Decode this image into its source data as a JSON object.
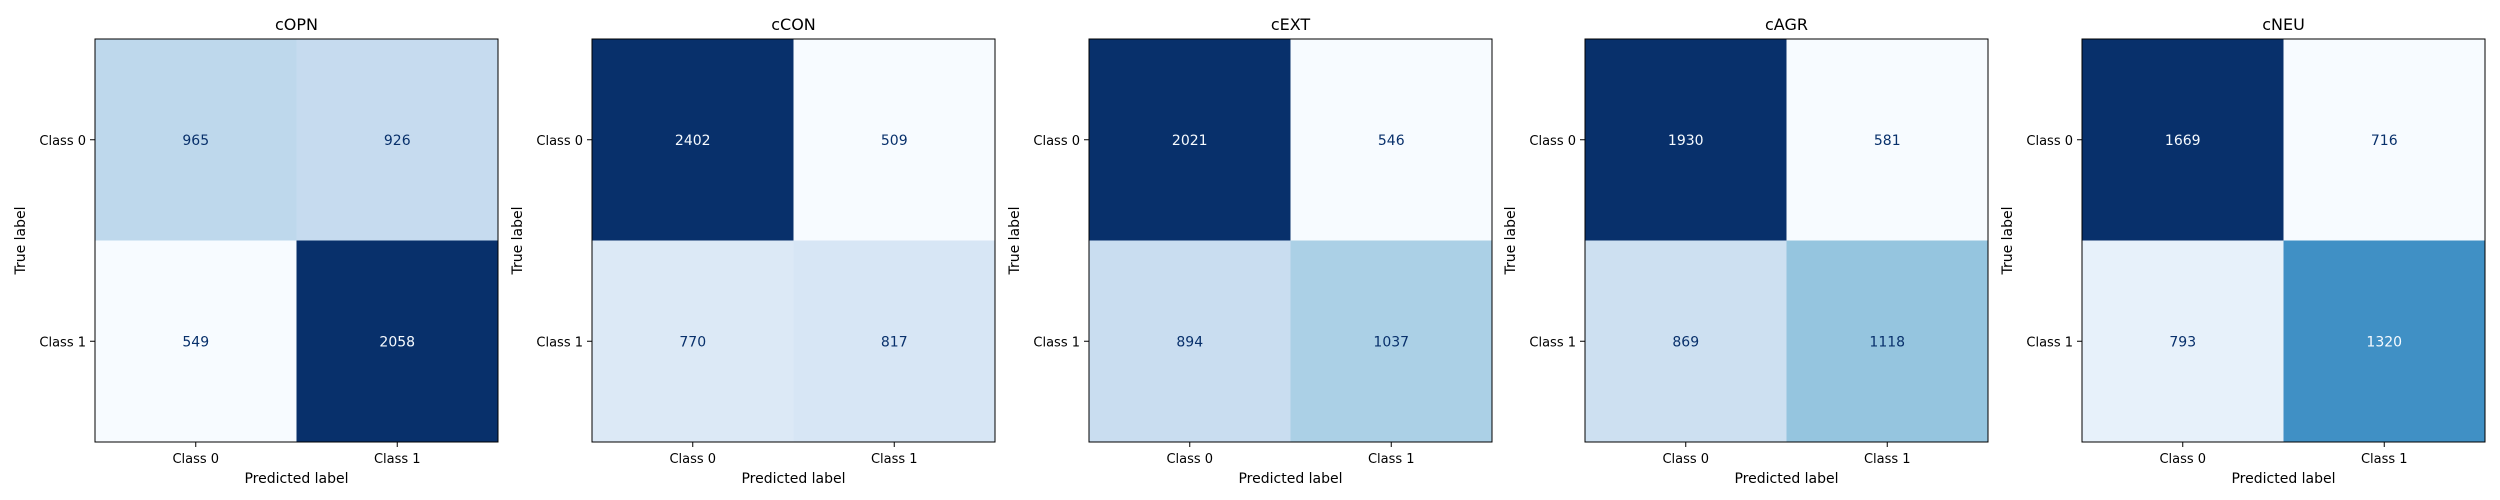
{
  "chart_data": [
    {
      "type": "heatmap",
      "title": "cOPN",
      "xlabel": "Predicted label",
      "ylabel": "True label",
      "x_ticks": [
        "Class 0",
        "Class 1"
      ],
      "y_ticks": [
        "Class 0",
        "Class 1"
      ],
      "matrix": [
        [
          965,
          926
        ],
        [
          549,
          2058
        ]
      ],
      "colormap": "Blues"
    },
    {
      "type": "heatmap",
      "title": "cCON",
      "xlabel": "Predicted label",
      "ylabel": "True label",
      "x_ticks": [
        "Class 0",
        "Class 1"
      ],
      "y_ticks": [
        "Class 0",
        "Class 1"
      ],
      "matrix": [
        [
          2402,
          509
        ],
        [
          770,
          817
        ]
      ],
      "colormap": "Blues"
    },
    {
      "type": "heatmap",
      "title": "cEXT",
      "xlabel": "Predicted label",
      "ylabel": "True label",
      "x_ticks": [
        "Class 0",
        "Class 1"
      ],
      "y_ticks": [
        "Class 0",
        "Class 1"
      ],
      "matrix": [
        [
          2021,
          546
        ],
        [
          894,
          1037
        ]
      ],
      "colormap": "Blues"
    },
    {
      "type": "heatmap",
      "title": "cAGR",
      "xlabel": "Predicted label",
      "ylabel": "True label",
      "x_ticks": [
        "Class 0",
        "Class 1"
      ],
      "y_ticks": [
        "Class 0",
        "Class 1"
      ],
      "matrix": [
        [
          1930,
          581
        ],
        [
          869,
          1118
        ]
      ],
      "colormap": "Blues"
    },
    {
      "type": "heatmap",
      "title": "cNEU",
      "xlabel": "Predicted label",
      "ylabel": "True label",
      "x_ticks": [
        "Class 0",
        "Class 1"
      ],
      "y_ticks": [
        "Class 0",
        "Class 1"
      ],
      "matrix": [
        [
          1669,
          716
        ],
        [
          793,
          1320
        ]
      ],
      "colormap": "Blues"
    }
  ]
}
